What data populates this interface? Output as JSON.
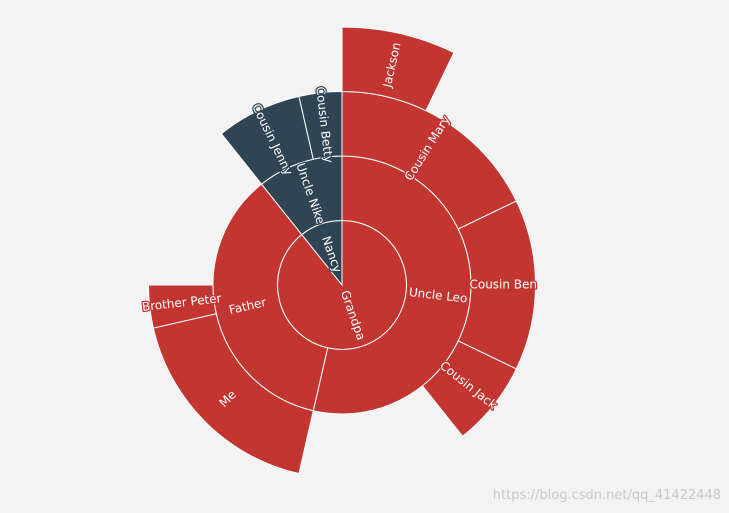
{
  "chart_data": {
    "type": "sunburst",
    "data": [
      {
        "name": "Grandpa",
        "value": 25,
        "color": "#c23531",
        "children": [
          {
            "name": "Uncle Leo",
            "value": 15,
            "children": [
              {
                "name": "Cousin Mary",
                "value": 5,
                "children": [
                  {
                    "name": "Jackson",
                    "value": 2
                  }
                ]
              },
              {
                "name": "Cousin Ben",
                "value": 4
              },
              {
                "name": "Cousin Jack",
                "value": 2
              }
            ]
          },
          {
            "name": "Father",
            "value": 10,
            "children": [
              {
                "name": "Me",
                "value": 5
              },
              {
                "name": "Brother Peter",
                "value": 1
              }
            ]
          }
        ]
      },
      {
        "name": "Nancy",
        "value": 3,
        "color": "#2f4554",
        "children": [
          {
            "name": "Uncle Nike",
            "value": 3,
            "children": [
              {
                "name": "Cousin Jenny",
                "value": 2
              },
              {
                "name": "Cousin Betty",
                "value": 1
              }
            ]
          }
        ]
      }
    ]
  },
  "watermark": "https://blog.csdn.net/qq_41422448"
}
